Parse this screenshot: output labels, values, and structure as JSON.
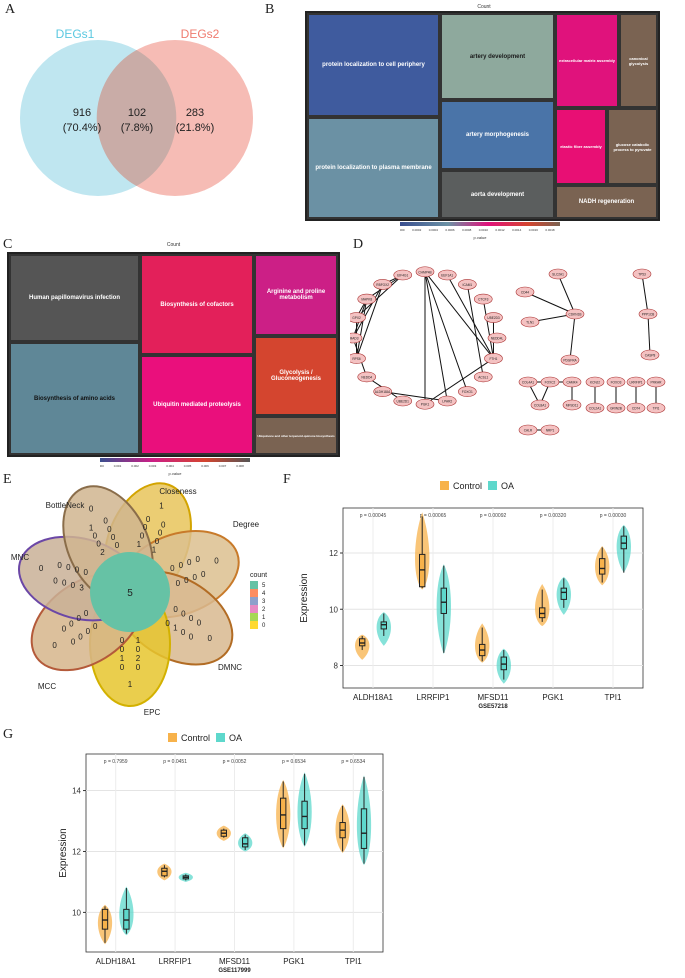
{
  "panels": {
    "a": "A",
    "b": "B",
    "c": "C",
    "d": "D",
    "e": "E",
    "f": "F",
    "g": "G"
  },
  "venn": {
    "set1_label": "DEGs1",
    "set2_label": "DEGs2",
    "only1_count": "916",
    "only1_pct": "(70.4%)",
    "both_count": "102",
    "both_pct": "(7.8%)",
    "only2_count": "283",
    "only2_pct": "(21.8%)",
    "colors": {
      "set1": "#5bc8e0",
      "set2": "#ef7b6f",
      "fill1": "#bfe6f0",
      "fill2": "#f6bcb5",
      "overlap": "#c9aca7"
    }
  },
  "treemap_b": {
    "top_label": "Count",
    "legend_title": "p.value",
    "scale_ticks": [
      "0.0000",
      "0.0002",
      "0.0004",
      "0.0006",
      "0.0008",
      "0.0010",
      "0.0012",
      "0.0014",
      "0.0016",
      "0.0018"
    ],
    "tiles": [
      {
        "label": "protein localization to cell periphery",
        "color": "#3f5b9e"
      },
      {
        "label": "protein localization to plasma membrane",
        "color": "#6b91a4"
      },
      {
        "label": "artery development",
        "color": "#8ea99d"
      },
      {
        "label": "artery morphogenesis",
        "color": "#4a74a8"
      },
      {
        "label": "aorta development",
        "color": "#5b5e5e"
      },
      {
        "label": "extracellular matrix assembly",
        "color": "#e0127c"
      },
      {
        "label": "canonical glycolysis",
        "color": "#7a6352"
      },
      {
        "label": "elastic fiber assembly",
        "color": "#e80f74"
      },
      {
        "label": "glucose catabolic process to pyruvate",
        "color": "#7a6352"
      },
      {
        "label": "NADH regeneration",
        "color": "#7a6352"
      }
    ]
  },
  "treemap_c": {
    "top_label": "Count",
    "legend_title": "p.value",
    "scale_ticks": [
      "0.000",
      "0.001",
      "0.002",
      "0.003",
      "0.004",
      "0.005",
      "0.006",
      "0.007",
      "0.008"
    ],
    "tiles": [
      {
        "label": "Human papillomavirus infection",
        "color": "#555555"
      },
      {
        "label": "Biosynthesis of amino acids",
        "color": "#5f8797"
      },
      {
        "label": "Biosynthesis of cofactors",
        "color": "#e3205a"
      },
      {
        "label": "Ubiquitin mediated proteolysis",
        "color": "#ea0f7c"
      },
      {
        "label": "Arginine and proline metabolism",
        "color": "#cc1f86"
      },
      {
        "label": "Glycolysis / Gluconeogenesis",
        "color": "#d4452f"
      },
      {
        "label": "Ubiquinone and other terpenoid-quinone biosynthesis",
        "color": "#7a6352"
      }
    ]
  },
  "network": {
    "circle_nodes": [
      "CHMP4B",
      "EEF1A1",
      "ICAM1",
      "CTCF3",
      "UBE2D3",
      "NEDD4L",
      "FTH1",
      "ACSL1",
      "FOXO1",
      "LPAR2",
      "PGK1",
      "UBE2D1",
      "ALDH18A1",
      "NEDD4",
      "RPS6",
      "SMAD3",
      "GPX2",
      "MAPK8",
      "RBFOX2",
      "EIF4G1"
    ],
    "star1_center": "CDKN1B",
    "star1_leaves": [
      "SLC2A1",
      "CD44",
      "TLN1",
      "PDGFRA"
    ],
    "star2_center": "PPP1CB",
    "star2_leaves": [
      "TP53",
      "CASP8"
    ],
    "small_groups": [
      "COL4A1",
      "FOXC2",
      "CAMK4",
      "COL8A1",
      "MFSD11",
      "KCNJ2",
      "COL2A1",
      "FOXO3",
      "GRIN2B",
      "LRRFIP1",
      "CD74",
      "PRKAR",
      "TPI1",
      "CALR",
      "NRP1"
    ]
  },
  "flower": {
    "petal_labels": [
      "Closeness",
      "Degree",
      "DMNC",
      "EPC",
      "MCC",
      "MNC",
      "BottleNeck"
    ],
    "center_value": "5",
    "legend_title": "count",
    "legend_items": [
      {
        "value": "5",
        "color": "#66c2a5"
      },
      {
        "value": "4",
        "color": "#fc8d62"
      },
      {
        "value": "3",
        "color": "#8da0cb"
      },
      {
        "value": "2",
        "color": "#e78ac3"
      },
      {
        "value": "1",
        "color": "#a6d854"
      },
      {
        "value": "0",
        "color": "#ffd92f"
      }
    ],
    "petal_values": [
      [
        "1",
        "0",
        "0",
        "0",
        "1",
        "0",
        "0",
        "0"
      ],
      [
        "0",
        "0",
        "0",
        "0",
        "0",
        "0",
        "0",
        "0"
      ],
      [
        "0",
        "0",
        "0",
        "0",
        "0",
        "1",
        "0",
        "0"
      ],
      [
        "1",
        "0",
        "2",
        "0",
        "0",
        "0",
        "1",
        "0"
      ],
      [
        "0",
        "0",
        "0",
        "0",
        "0",
        "0",
        "0",
        "0"
      ],
      [
        "3",
        "0",
        "0",
        "0",
        "0",
        "0",
        "0",
        "0"
      ],
      [
        "2",
        "0",
        "0",
        "1",
        "0",
        "0",
        "0",
        "0"
      ]
    ],
    "petal_outer_values": [
      "1",
      "0",
      "0",
      "1",
      "0",
      "0",
      "0"
    ]
  },
  "chart_data": [
    {
      "type": "violin-box",
      "title": "",
      "xlabel": "GSE57218",
      "ylabel": "Expression",
      "categories": [
        "ALDH18A1",
        "LRRFIP1",
        "MFSD11",
        "PGK1",
        "TPI1"
      ],
      "pvalues": [
        "p = 0.00045",
        "p = 0.00065",
        "p = 0.00092",
        "p = 0.00320",
        "p = 0.00030"
      ],
      "ylim": [
        7.2,
        13.6
      ],
      "yticks": [
        8,
        10,
        12
      ],
      "legend": {
        "position": "top",
        "items": [
          {
            "name": "Control",
            "color": "#f7b24b"
          },
          {
            "name": "OA",
            "color": "#5ed8cc"
          }
        ]
      },
      "series": [
        {
          "name": "Control",
          "color": "#f7b24b",
          "boxes": [
            [
              8.55,
              8.7,
              8.8,
              8.95,
              9.05
            ],
            [
              10.75,
              10.8,
              11.4,
              11.95,
              13.3
            ],
            [
              8.15,
              8.35,
              8.55,
              8.75,
              9.35
            ],
            [
              9.55,
              9.7,
              9.85,
              10.05,
              10.7
            ],
            [
              10.95,
              11.25,
              11.45,
              11.8,
              12.2
            ]
          ],
          "violins": [
            [
              8.2,
              9.1
            ],
            [
              10.7,
              13.45
            ],
            [
              8.1,
              9.5
            ],
            [
              9.4,
              10.9
            ],
            [
              10.85,
              12.25
            ]
          ]
        },
        {
          "name": "OA",
          "color": "#5ed8cc",
          "boxes": [
            [
              9.05,
              9.3,
              9.45,
              9.55,
              9.85
            ],
            [
              8.45,
              9.85,
              10.25,
              10.75,
              11.55
            ],
            [
              7.5,
              7.85,
              8.05,
              8.3,
              8.55
            ],
            [
              10.05,
              10.35,
              10.6,
              10.75,
              11.1
            ],
            [
              11.3,
              12.15,
              12.35,
              12.6,
              12.95
            ]
          ],
          "violins": [
            [
              8.7,
              9.9
            ],
            [
              8.4,
              11.6
            ],
            [
              7.35,
              8.6
            ],
            [
              9.8,
              11.15
            ],
            [
              11.3,
              13.0
            ]
          ]
        }
      ]
    },
    {
      "type": "violin-box",
      "title": "",
      "xlabel": "GSE117999",
      "ylabel": "Expression",
      "categories": [
        "ALDH18A1",
        "LRRFIP1",
        "MFSD11",
        "PGK1",
        "TPI1"
      ],
      "pvalues": [
        "p = 0.7959",
        "p = 0.0451",
        "p = 0.0052",
        "p = 0.6534",
        "p = 0.6534"
      ],
      "ylim": [
        8.7,
        15.2
      ],
      "yticks": [
        10,
        12,
        14
      ],
      "legend": {
        "position": "top",
        "items": [
          {
            "name": "Control",
            "color": "#f7b24b"
          },
          {
            "name": "OA",
            "color": "#5ed8cc"
          }
        ]
      },
      "series": [
        {
          "name": "Control",
          "color": "#f7b24b",
          "boxes": [
            [
              9.0,
              9.45,
              9.75,
              10.1,
              10.2
            ],
            [
              11.15,
              11.2,
              11.35,
              11.45,
              11.55
            ],
            [
              12.45,
              12.5,
              12.6,
              12.7,
              12.75
            ],
            [
              12.15,
              12.75,
              13.2,
              13.75,
              14.3
            ],
            [
              12.0,
              12.45,
              12.7,
              12.95,
              13.5
            ]
          ],
          "violins": [
            [
              8.95,
              10.25
            ],
            [
              11.05,
              11.6
            ],
            [
              12.35,
              12.85
            ],
            [
              12.1,
              14.35
            ],
            [
              11.95,
              13.55
            ]
          ]
        },
        {
          "name": "OA",
          "color": "#5ed8cc",
          "boxes": [
            [
              9.3,
              9.45,
              9.75,
              10.1,
              10.8
            ],
            [
              11.05,
              11.1,
              11.15,
              11.2,
              11.25
            ],
            [
              12.05,
              12.15,
              12.25,
              12.45,
              12.55
            ],
            [
              12.2,
              12.75,
              13.15,
              13.65,
              14.55
            ],
            [
              11.6,
              12.1,
              12.6,
              13.4,
              14.45
            ]
          ],
          "violins": [
            [
              9.25,
              10.85
            ],
            [
              11.0,
              11.3
            ],
            [
              12.0,
              12.6
            ],
            [
              12.15,
              14.6
            ],
            [
              11.55,
              14.5
            ]
          ]
        }
      ]
    }
  ]
}
